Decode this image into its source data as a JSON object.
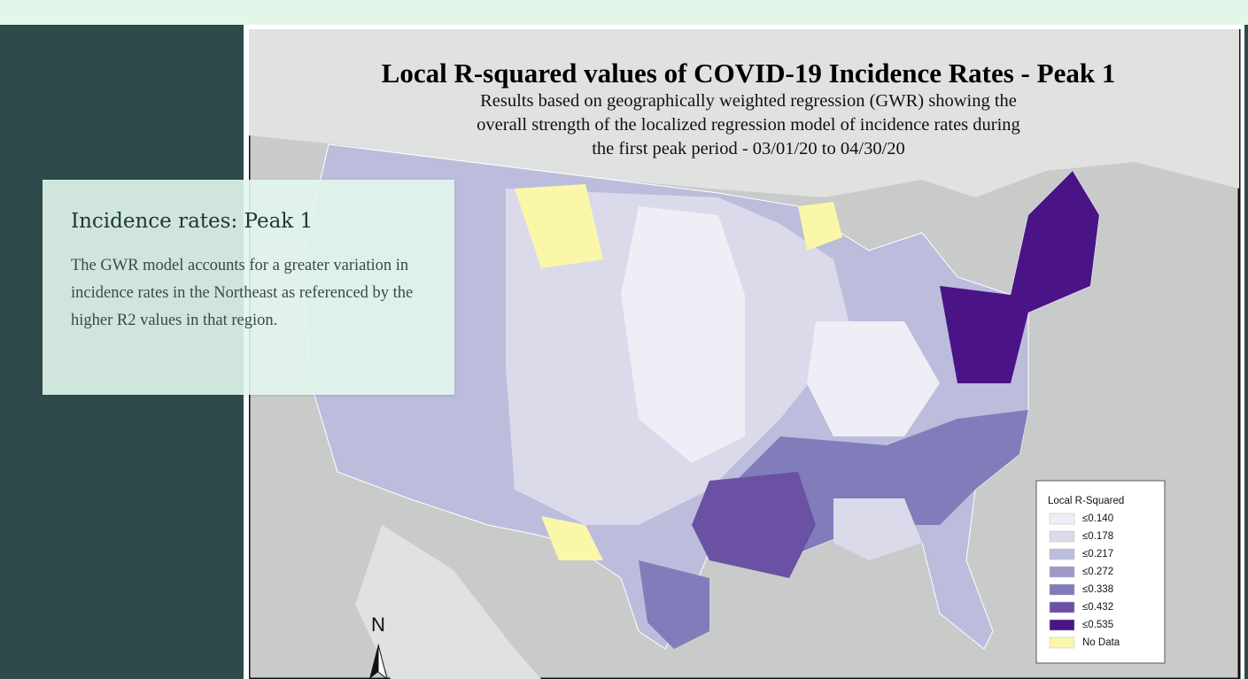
{
  "card": {
    "title": "Incidence rates: Peak 1",
    "body": "The GWR model accounts for a greater variation in incidence rates in the Northeast as referenced by the higher R2 values in that region."
  },
  "map": {
    "title": "Local R-squared values of COVID-19 Incidence Rates - Peak 1",
    "subtitle_lines": [
      "Results based on geographically weighted regression (GWR) showing the",
      "overall strength of the localized regression model of incidence rates during",
      "the first peak period - 03/01/20 to 04/30/20"
    ],
    "legend": {
      "title": "Local R-Squared",
      "items": [
        {
          "label": "≤0.140",
          "color": "#efedf5"
        },
        {
          "label": "≤0.178",
          "color": "#dadaeb"
        },
        {
          "label": "≤0.217",
          "color": "#bcbddc"
        },
        {
          "label": "≤0.272",
          "color": "#9e9ac8"
        },
        {
          "label": "≤0.338",
          "color": "#807dba"
        },
        {
          "label": "≤0.432",
          "color": "#6a51a3"
        },
        {
          "label": "≤0.535",
          "color": "#4a1486"
        },
        {
          "label": "No Data",
          "color": "#fbf7a8"
        }
      ]
    },
    "north": "N"
  }
}
